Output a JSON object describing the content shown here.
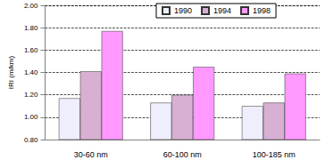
{
  "chart_data": {
    "type": "bar",
    "y_label": "IRI (m/km)",
    "categories": [
      "30-60 nm",
      "60-100 nm",
      "100-185 nm"
    ],
    "series": [
      {
        "name": "1990",
        "color": "#eeeefc",
        "values": [
          1.17,
          1.13,
          1.1
        ]
      },
      {
        "name": "1994",
        "color": "#d8b0d4",
        "values": [
          1.41,
          1.2,
          1.13
        ]
      },
      {
        "name": "1998",
        "color": "#ff99ff",
        "values": [
          1.77,
          1.45,
          1.39
        ]
      }
    ],
    "ylim": [
      0.8,
      2.0
    ],
    "yticks": [
      {
        "value": 0.8,
        "label": "0.80"
      },
      {
        "value": 1.0,
        "label": "1.00"
      },
      {
        "value": 1.2,
        "label": "1.20"
      },
      {
        "value": 1.4,
        "label": "1.40"
      },
      {
        "value": 1.6,
        "label": "1.60"
      },
      {
        "value": 1.8,
        "label": "1.80"
      },
      {
        "value": 2.0,
        "label": "2.00"
      }
    ],
    "grid": true,
    "legend": "top"
  }
}
